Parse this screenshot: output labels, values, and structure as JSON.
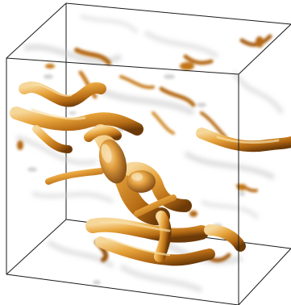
{
  "view": {
    "background_color": "#ffffff",
    "box_edge_color": "#1a1a1a",
    "structure_colors": {
      "deep": "#6b3a08",
      "mid": "#b56a14",
      "bright": "#e8a53c",
      "highlight": "#f6d79a"
    },
    "haze_color": "#bfbfbf"
  }
}
